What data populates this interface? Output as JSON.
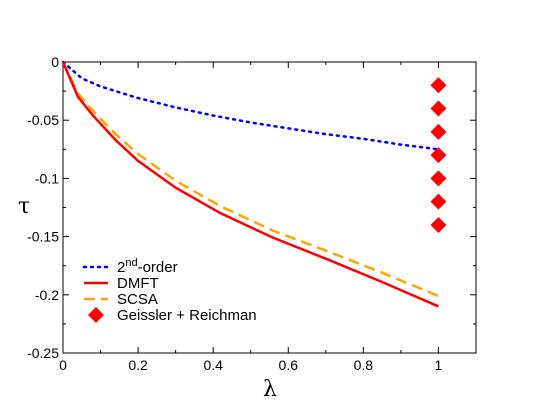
{
  "chart_data": {
    "type": "line",
    "xlabel": "λ",
    "ylabel": "τ",
    "xlim": [
      0,
      1.1
    ],
    "ylim": [
      -0.25,
      0
    ],
    "x_ticks": [
      "0",
      "0.2",
      "0.4",
      "0.6",
      "0.8",
      "1"
    ],
    "y_ticks": [
      "0",
      "-0.05",
      "-0.1",
      "-0.15",
      "-0.2",
      "-0.25"
    ],
    "x_tick_values": [
      0,
      0.2,
      0.4,
      0.6,
      0.8,
      1
    ],
    "y_tick_values": [
      0,
      -0.05,
      -0.1,
      -0.15,
      -0.2,
      -0.25
    ],
    "legend_position": "bottom-left",
    "grid": false,
    "series": [
      {
        "name": "2nd-order",
        "legend_base": "2",
        "legend_sup": "nd",
        "legend_rest": "-order",
        "style": "dotted",
        "color": "#0000ff",
        "x": [
          0,
          0.05,
          0.1,
          0.15,
          0.2,
          0.3,
          0.4,
          0.5,
          0.6,
          0.7,
          0.8,
          0.9,
          1.0
        ],
        "y": [
          0,
          -0.014,
          -0.021,
          -0.026,
          -0.031,
          -0.039,
          -0.046,
          -0.052,
          -0.057,
          -0.062,
          -0.066,
          -0.071,
          -0.075
        ]
      },
      {
        "name": "DMFT",
        "style": "solid",
        "color": "#ff0000",
        "x": [
          0,
          0.04,
          0.08,
          0.14,
          0.2,
          0.3,
          0.42,
          0.56,
          0.7,
          0.85,
          1.0
        ],
        "y": [
          0,
          -0.03,
          -0.046,
          -0.067,
          -0.085,
          -0.108,
          -0.13,
          -0.151,
          -0.169,
          -0.189,
          -0.21
        ]
      },
      {
        "name": "SCSA",
        "style": "dashed",
        "color": "#ffa500",
        "x": [
          0,
          0.04,
          0.08,
          0.14,
          0.2,
          0.3,
          0.42,
          0.56,
          0.7,
          0.85,
          1.0
        ],
        "y": [
          0,
          -0.027,
          -0.042,
          -0.062,
          -0.079,
          -0.102,
          -0.124,
          -0.145,
          -0.162,
          -0.181,
          -0.201
        ]
      },
      {
        "name": "Geissler + Reichman",
        "style": "markers",
        "marker": "diamond",
        "color": "#ff0000",
        "x": [
          1,
          1,
          1,
          1,
          1,
          1,
          1
        ],
        "y": [
          -0.02,
          -0.04,
          -0.06,
          -0.08,
          -0.1,
          -0.12,
          -0.14
        ]
      }
    ]
  }
}
